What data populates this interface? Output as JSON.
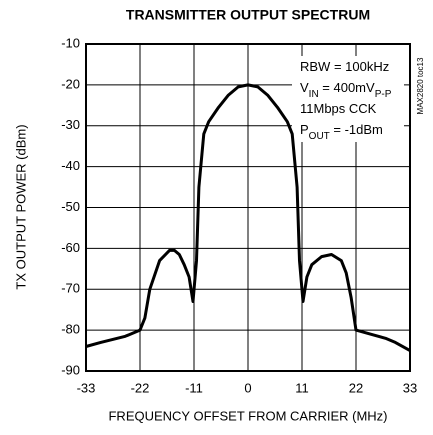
{
  "chart_data": {
    "type": "line",
    "title": "TRANSMITTER OUTPUT SPECTRUM",
    "xlabel": "FREQUENCY OFFSET FROM CARRIER (MHz)",
    "ylabel": "TX OUTPUT POWER (dBm)",
    "side_note": "MAX2820 toc13",
    "annotations": [
      [
        "RBW = 100kHz"
      ],
      [
        "V",
        "IN",
        " = 400mV",
        "P-P"
      ],
      [
        "11Mbps CCK"
      ],
      [
        "P",
        "OUT",
        " = -1dBm"
      ]
    ],
    "xlim": [
      -33,
      33
    ],
    "ylim": [
      -90,
      -10
    ],
    "xticks": [
      -33,
      -22,
      -11,
      0,
      11,
      22,
      33
    ],
    "yticks": [
      -90,
      -80,
      -70,
      -60,
      -50,
      -40,
      -30,
      -20,
      -10
    ],
    "grid": true,
    "series": [
      {
        "color": "#000000",
        "x": [
          -33,
          -30,
          -25,
          -22,
          -21,
          -20,
          -18,
          -16,
          -15,
          -14,
          -13,
          -12,
          -11.2,
          -10.5,
          -10,
          -9,
          -8,
          -6,
          -4,
          -2,
          0,
          2,
          4,
          6,
          8,
          9,
          10,
          10.5,
          11.2,
          12,
          13,
          15,
          17,
          19,
          20,
          21,
          22,
          25,
          28,
          30,
          33
        ],
        "values": [
          -84,
          -83,
          -81.5,
          -80,
          -77,
          -70,
          -63,
          -60.5,
          -60.5,
          -61.5,
          -64,
          -67,
          -73,
          -63,
          -45,
          -32,
          -29,
          -25.5,
          -22.5,
          -20.5,
          -20,
          -20.5,
          -22.5,
          -25.5,
          -29,
          -32,
          -45,
          -63,
          -73,
          -67,
          -64,
          -62,
          -61.5,
          -63,
          -66,
          -72,
          -80,
          -81,
          -82,
          -83,
          -85
        ]
      }
    ]
  }
}
